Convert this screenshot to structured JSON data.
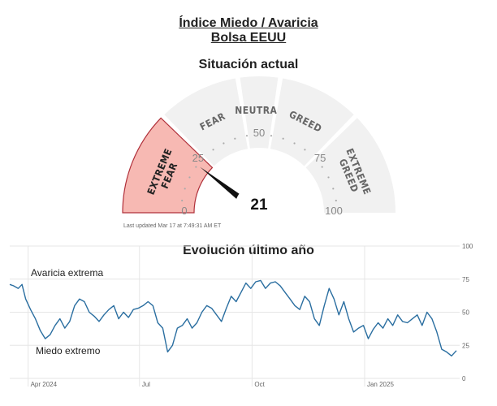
{
  "title_line1": "Índice Miedo / Avaricia",
  "title_line2": "Bolsa EEUU",
  "gauge": {
    "subtitle": "Situación actual",
    "value": 21,
    "value_label": "21",
    "updated": "Last updated Mar 17 at 7:49:31 AM ET",
    "zones": [
      {
        "label_lines": [
          "EXTREME",
          "FEAR"
        ],
        "from": 0,
        "to": 25,
        "active": true
      },
      {
        "label_lines": [
          "FEAR"
        ],
        "from": 25,
        "to": 45,
        "active": false
      },
      {
        "label_lines": [
          "NEUTRAL"
        ],
        "from": 45,
        "to": 55,
        "active": false
      },
      {
        "label_lines": [
          "GREED"
        ],
        "from": 55,
        "to": 75,
        "active": false
      },
      {
        "label_lines": [
          "EXTREME",
          "GREED"
        ],
        "from": 75,
        "to": 100,
        "active": false
      }
    ],
    "tick_labels": [
      "0",
      "25",
      "50",
      "75",
      "100"
    ],
    "colors": {
      "active_fill": "#f7b9b3",
      "active_stroke": "#b0303a",
      "inactive_fill": "#f1f1f1",
      "needle": "#111111"
    }
  },
  "chart_data": {
    "type": "line",
    "title": "Evolución último año",
    "ylim": [
      0,
      100
    ],
    "y_ticks": [
      "0",
      "25",
      "50",
      "75",
      "100"
    ],
    "x_ticks": [
      {
        "label": "Apr 2024",
        "date": "2024-04-01"
      },
      {
        "label": "Jul",
        "date": "2024-07-01"
      },
      {
        "label": "Oct",
        "date": "2024-10-01"
      },
      {
        "label": "Jan 2025",
        "date": "2025-01-01"
      }
    ],
    "grid": true,
    "annotations": [
      "Avaricia extrema",
      "Miedo extremo"
    ],
    "line_color": "#2a6ea0",
    "series": [
      {
        "x": [
          "2024-03-17",
          "2024-03-20",
          "2024-03-24",
          "2024-03-27",
          "2024-03-30",
          "2024-04-03",
          "2024-04-07",
          "2024-04-11",
          "2024-04-15",
          "2024-04-19",
          "2024-04-23",
          "2024-04-27",
          "2024-05-01",
          "2024-05-05",
          "2024-05-09",
          "2024-05-13",
          "2024-05-17",
          "2024-05-21",
          "2024-05-25",
          "2024-05-29",
          "2024-06-02",
          "2024-06-06",
          "2024-06-10",
          "2024-06-14",
          "2024-06-18",
          "2024-06-22",
          "2024-06-26",
          "2024-06-30",
          "2024-07-04",
          "2024-07-08",
          "2024-07-12",
          "2024-07-16",
          "2024-07-20",
          "2024-07-24",
          "2024-07-28",
          "2024-08-01",
          "2024-08-05",
          "2024-08-09",
          "2024-08-13",
          "2024-08-17",
          "2024-08-21",
          "2024-08-25",
          "2024-08-29",
          "2024-09-02",
          "2024-09-06",
          "2024-09-10",
          "2024-09-14",
          "2024-09-18",
          "2024-09-22",
          "2024-09-26",
          "2024-09-30",
          "2024-10-04",
          "2024-10-08",
          "2024-10-12",
          "2024-10-16",
          "2024-10-20",
          "2024-10-24",
          "2024-10-28",
          "2024-11-01",
          "2024-11-05",
          "2024-11-09",
          "2024-11-13",
          "2024-11-17",
          "2024-11-21",
          "2024-11-25",
          "2024-11-29",
          "2024-12-03",
          "2024-12-07",
          "2024-12-11",
          "2024-12-15",
          "2024-12-19",
          "2024-12-23",
          "2024-12-27",
          "2024-12-31",
          "2025-01-04",
          "2025-01-08",
          "2025-01-12",
          "2025-01-16",
          "2025-01-20",
          "2025-01-24",
          "2025-01-28",
          "2025-02-01",
          "2025-02-05",
          "2025-02-09",
          "2025-02-13",
          "2025-02-17",
          "2025-02-21",
          "2025-02-25",
          "2025-03-01",
          "2025-03-05",
          "2025-03-09",
          "2025-03-13",
          "2025-03-17"
        ],
        "values": [
          71,
          70,
          68,
          71,
          60,
          52,
          45,
          36,
          30,
          33,
          40,
          45,
          38,
          43,
          55,
          60,
          58,
          50,
          47,
          43,
          48,
          52,
          55,
          45,
          50,
          46,
          52,
          53,
          55,
          58,
          55,
          42,
          38,
          20,
          25,
          38,
          40,
          45,
          38,
          42,
          50,
          55,
          53,
          48,
          43,
          53,
          62,
          58,
          65,
          72,
          68,
          73,
          74,
          68,
          72,
          73,
          70,
          65,
          60,
          55,
          52,
          62,
          58,
          45,
          40,
          55,
          68,
          60,
          48,
          58,
          45,
          35,
          38,
          40,
          30,
          37,
          42,
          38,
          45,
          40,
          48,
          43,
          42,
          45,
          48,
          40,
          50,
          45,
          35,
          22,
          20,
          17,
          21
        ]
      }
    ]
  }
}
